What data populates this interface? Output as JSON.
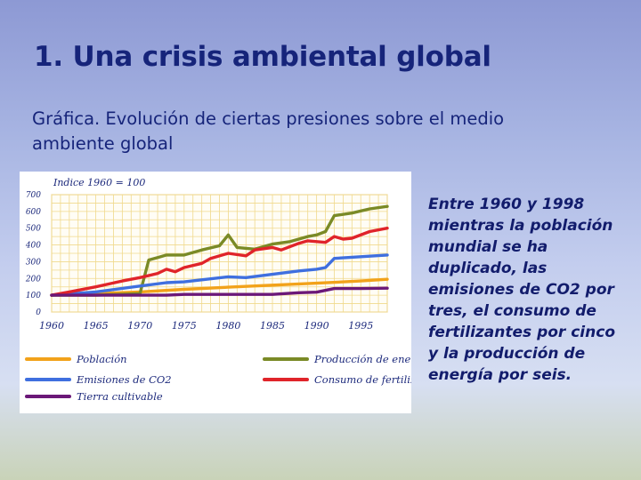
{
  "slide": {
    "title": "1. Una crisis ambiental global",
    "subtitle": "Gráfica. Evolución de ciertas presiones sobre el medio ambiente global",
    "side_text": "Entre 1960 y 1998 mientras la población mundial se ha duplicado, las emisiones de CO2 por tres, el consumo de fertilizantes por cinco y la producción de energía por seis."
  },
  "chart_data": {
    "type": "line",
    "title": "Indice 1960 = 100",
    "xlabel": "",
    "ylabel": "",
    "xlim": [
      1960,
      1998
    ],
    "ylim": [
      0,
      700
    ],
    "yticks": [
      0,
      100,
      200,
      300,
      400,
      500,
      600,
      700
    ],
    "xticks": [
      1960,
      1965,
      1970,
      1975,
      1980,
      1985,
      1990,
      1995
    ],
    "grid": true,
    "series": [
      {
        "name": "Población",
        "color": "#f2a21a",
        "x": [
          1960,
          1965,
          1970,
          1975,
          1980,
          1985,
          1990,
          1995,
          1998
        ],
        "values": [
          100,
          110,
          120,
          135,
          148,
          160,
          172,
          185,
          195
        ]
      },
      {
        "name": "Producción de energía",
        "color": "#7a8a26",
        "x": [
          1960,
          1965,
          1970,
          1971,
          1972,
          1973,
          1975,
          1977,
          1979,
          1980,
          1981,
          1983,
          1985,
          1987,
          1989,
          1990,
          1991,
          1992,
          1994,
          1996,
          1998
        ],
        "values": [
          100,
          100,
          110,
          310,
          325,
          340,
          340,
          370,
          395,
          460,
          385,
          375,
          405,
          420,
          450,
          460,
          480,
          575,
          590,
          615,
          630
        ]
      },
      {
        "name": "Emisiones de CO2",
        "color": "#3f6fdf",
        "x": [
          1960,
          1965,
          1970,
          1973,
          1975,
          1980,
          1982,
          1985,
          1988,
          1990,
          1991,
          1992,
          1995,
          1998
        ],
        "values": [
          100,
          120,
          155,
          175,
          180,
          210,
          205,
          225,
          245,
          255,
          265,
          320,
          330,
          340
        ]
      },
      {
        "name": "Consumo de fertilizantes",
        "color": "#e0242a",
        "x": [
          1960,
          1962,
          1965,
          1968,
          1970,
          1972,
          1973,
          1974,
          1975,
          1977,
          1978,
          1980,
          1982,
          1983,
          1985,
          1986,
          1988,
          1989,
          1990,
          1991,
          1992,
          1993,
          1994,
          1996,
          1998
        ],
        "values": [
          100,
          120,
          150,
          185,
          205,
          230,
          255,
          240,
          265,
          290,
          320,
          350,
          335,
          370,
          385,
          370,
          410,
          425,
          420,
          415,
          450,
          435,
          440,
          480,
          500
        ]
      },
      {
        "name": "Tierra cultivable",
        "color": "#6b1878",
        "x": [
          1960,
          1965,
          1970,
          1973,
          1975,
          1980,
          1985,
          1988,
          1990,
          1992,
          1995,
          1998
        ],
        "values": [
          100,
          100,
          100,
          100,
          105,
          105,
          105,
          115,
          118,
          140,
          140,
          142
        ]
      }
    ],
    "legend": {
      "position": "bottom",
      "layout": [
        [
          "Población",
          "Producción de energía"
        ],
        [
          "Emisiones de CO2",
          "Consumo de fertilizantes"
        ],
        [
          "Tierra cultivable"
        ]
      ]
    }
  }
}
